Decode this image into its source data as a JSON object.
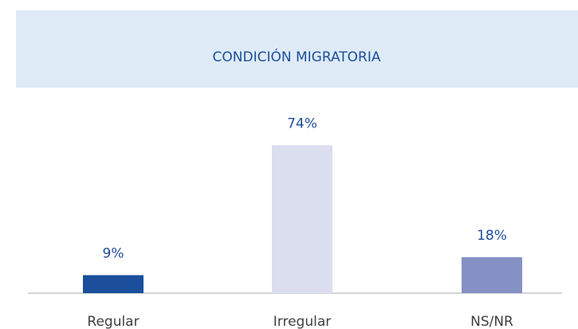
{
  "chart_data": {
    "type": "bar",
    "title": "CONDICIÓN MIGRATORIA",
    "categories": [
      "Regular",
      "Irregular",
      "NS/NR"
    ],
    "values": [
      9,
      74,
      18
    ],
    "value_labels": [
      "9%",
      "74%",
      "18%"
    ],
    "colors": [
      "#1b4f9b",
      "#dadeef",
      "#8590c5"
    ]
  }
}
